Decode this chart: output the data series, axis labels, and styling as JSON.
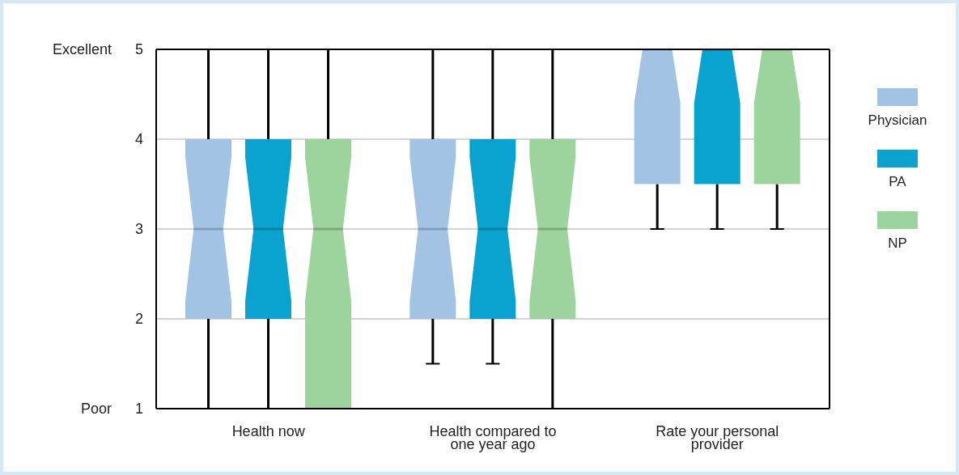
{
  "chart_data": {
    "type": "box",
    "categories": [
      "Health now",
      "Health compared to one year ago",
      "Rate your personal provider"
    ],
    "series": [
      {
        "name": "Physician",
        "color": "#a3c3e5",
        "boxes": [
          {
            "low": 1,
            "q1": 2,
            "median": 3,
            "q3": 4,
            "high": 5
          },
          {
            "low": 1.5,
            "q1": 2,
            "median": 3,
            "q3": 4,
            "high": 5
          },
          {
            "low": 3,
            "q1": 3.5,
            "median": 5,
            "q3": 5,
            "high": 5
          }
        ]
      },
      {
        "name": "PA",
        "color": "#0aa3cf",
        "boxes": [
          {
            "low": 1,
            "q1": 2,
            "median": 3,
            "q3": 4,
            "high": 5
          },
          {
            "low": 1.5,
            "q1": 2,
            "median": 3,
            "q3": 4,
            "high": 5
          },
          {
            "low": 3,
            "q1": 3.5,
            "median": 5,
            "q3": 5,
            "high": 5
          }
        ]
      },
      {
        "name": "NP",
        "color": "#9dd39c",
        "boxes": [
          {
            "low": 1,
            "q1": 1,
            "median": 3,
            "q3": 4,
            "high": 5
          },
          {
            "low": 1,
            "q1": 2,
            "median": 3,
            "q3": 4,
            "high": 5
          },
          {
            "low": 3,
            "q1": 3.5,
            "median": 5,
            "q3": 5,
            "high": 5
          }
        ]
      }
    ],
    "ylim": [
      1,
      5
    ],
    "yticks": [
      1,
      2,
      3,
      4,
      5
    ],
    "grid": "y",
    "legend": "right",
    "annotations": [
      "Excellent",
      "Poor"
    ]
  }
}
